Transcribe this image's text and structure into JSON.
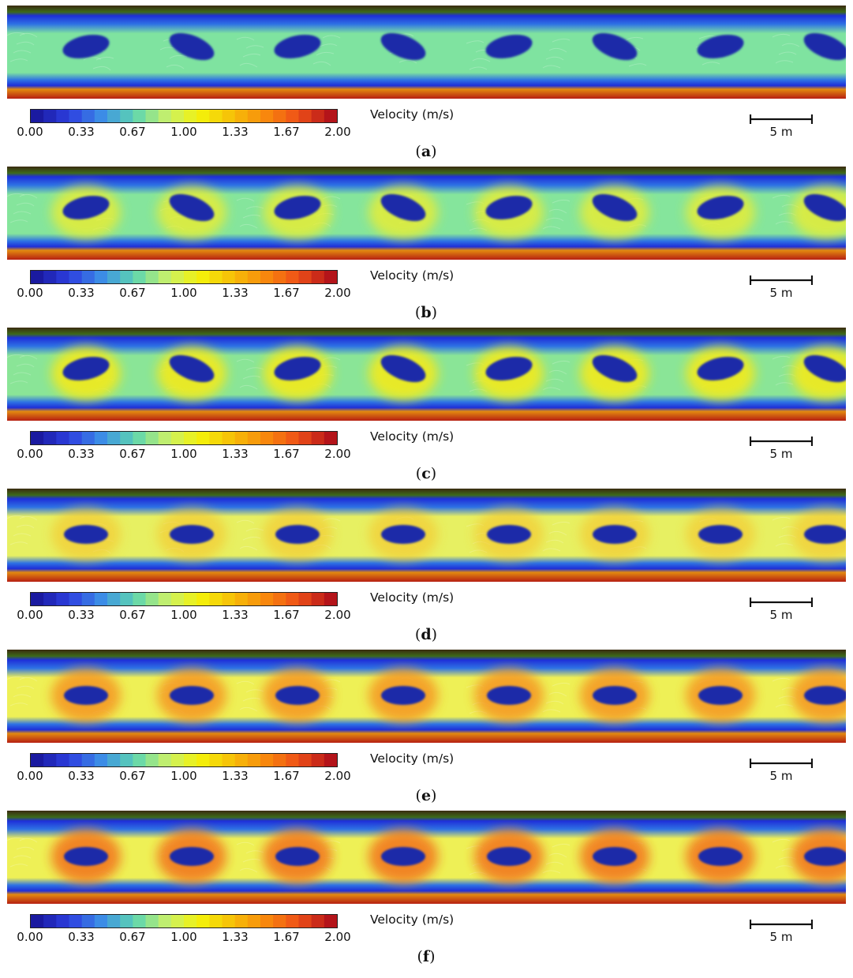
{
  "colorbar": {
    "title": "Velocity (m/s)",
    "ticks": [
      "0.00",
      "0.33",
      "0.67",
      "1.00",
      "1.33",
      "1.67",
      "2.00"
    ],
    "range": [
      0,
      2
    ],
    "colors": [
      "#1a1aa0",
      "#2d3fe0",
      "#3d8fe6",
      "#5ed6b0",
      "#c8f06a",
      "#f4f20a",
      "#f6be08",
      "#f88a0c",
      "#ee5018",
      "#b4141a"
    ]
  },
  "scale_bar": {
    "label": "5 m"
  },
  "panels": [
    {
      "letter": "a",
      "flow_color": "#7fe3a0",
      "blob_shape": "irregular",
      "accent_color": "#9feb8a",
      "accent_opacity": 0.0
    },
    {
      "letter": "b",
      "flow_color": "#85e59c",
      "blob_shape": "irregular",
      "accent_color": "#f2ee2a",
      "accent_opacity": 0.75
    },
    {
      "letter": "c",
      "flow_color": "#8ae597",
      "blob_shape": "irregular",
      "accent_color": "#f2ea1c",
      "accent_opacity": 0.9
    },
    {
      "letter": "d",
      "flow_color": "#e7f062",
      "blob_shape": "ellipse",
      "accent_color": "#f6c52a",
      "accent_opacity": 0.6
    },
    {
      "letter": "e",
      "flow_color": "#eef056",
      "blob_shape": "ellipse",
      "accent_color": "#f59620",
      "accent_opacity": 0.85
    },
    {
      "letter": "f",
      "flow_color": "#eef056",
      "blob_shape": "ellipse",
      "accent_color": "#f28022",
      "accent_opacity": 0.95
    }
  ],
  "map_colors": {
    "bank_dark": "#3a2a10",
    "bank_vegetation": "#3d6a1a",
    "edge_blue": "#1e2fd8",
    "shallow_blue": "#2e72e4",
    "bed_orange": "#e28a10",
    "bed_red": "#b62012",
    "obstacle": "#1b2ca8"
  }
}
